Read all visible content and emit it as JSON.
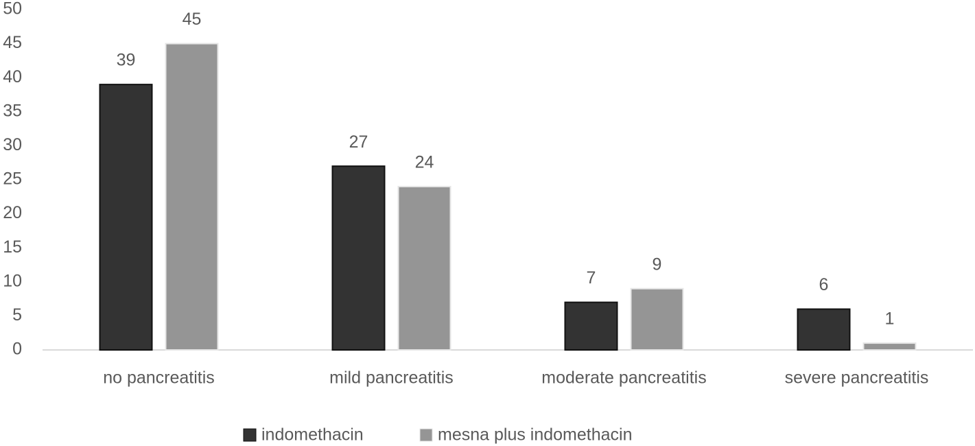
{
  "chart_data": {
    "type": "bar",
    "categories": [
      "no pancreatitis",
      "mild pancreatitis",
      "moderate pancreatitis",
      "severe pancreatitis"
    ],
    "series": [
      {
        "name": "indomethacin",
        "color": "#333333",
        "values": [
          39,
          27,
          7,
          6
        ]
      },
      {
        "name": "mesna plus indomethacin",
        "color": "#959595",
        "values": [
          45,
          24,
          9,
          1
        ]
      }
    ],
    "ylim": [
      0,
      50
    ],
    "yticks": [
      0,
      5,
      10,
      15,
      20,
      25,
      30,
      35,
      40,
      45,
      50
    ],
    "grid": false,
    "legend": "bottom"
  }
}
